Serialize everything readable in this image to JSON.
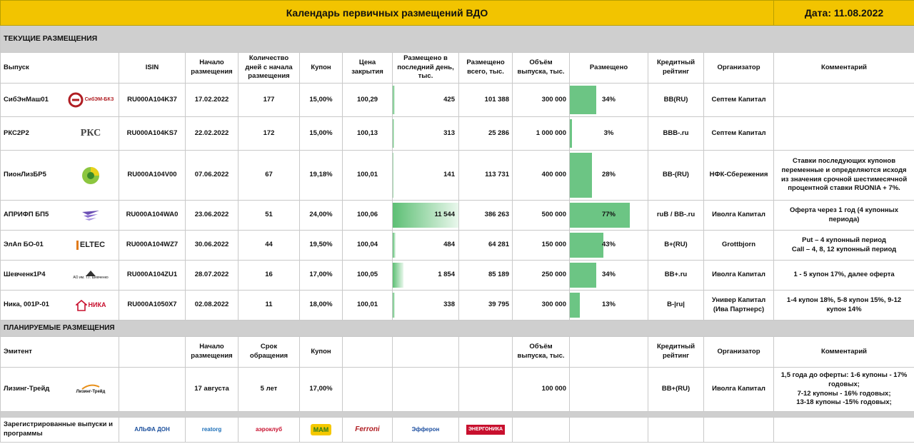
{
  "header": {
    "title": "Календарь первичных размещений ВДО",
    "date": "Дата: 11.08.2022"
  },
  "current": {
    "section_title": "ТЕКУЩИЕ РАЗМЕЩЕНИЯ",
    "columns": [
      "Выпуск",
      "ISIN",
      "Начало размещения",
      "Количество дней с начала размещения",
      "Купон",
      "Цена закрытия",
      "Размещено в последний день, тыс.",
      "Размещено всего, тыс.",
      "Объём выпуска, тыс.",
      "Размещено",
      "Кредитный рейтинг",
      "Организатор",
      "Комментарий"
    ],
    "rows": [
      {
        "issue": "СибЭнМаш01",
        "logo": "СибЭМ-БКЗ",
        "isin": "RU000A104K37",
        "start": "17.02.2022",
        "days": "177",
        "coupon": "15,00%",
        "price": "100,29",
        "last_day": "425",
        "last_day_frac": 0.037,
        "total": "101 388",
        "volume": "300 000",
        "placed_pct": "34%",
        "placed_frac": 0.34,
        "rating": "BB(RU)",
        "organizer": "Септем Капитал",
        "comment": ""
      },
      {
        "issue": "РКС2Р2",
        "logo": "РКС",
        "isin": "RU000A104KS7",
        "start": "22.02.2022",
        "days": "172",
        "coupon": "15,00%",
        "price": "100,13",
        "last_day": "313",
        "last_day_frac": 0.027,
        "total": "25 286",
        "volume": "1 000 000",
        "placed_pct": "3%",
        "placed_frac": 0.03,
        "rating": "BBB-.ru",
        "organizer": "Септем Капитал",
        "comment": ""
      },
      {
        "issue": "ПионЛизБР5",
        "logo": "",
        "isin": "RU000A104V00",
        "start": "07.06.2022",
        "days": "67",
        "coupon": "19,18%",
        "price": "100,01",
        "last_day": "141",
        "last_day_frac": 0.012,
        "total": "113 731",
        "volume": "400 000",
        "placed_pct": "28%",
        "placed_frac": 0.28,
        "rating": "BB-(RU)",
        "organizer": "НФК-Сбережения",
        "comment": "Ставки последующих купонов переменные и определяются исходя из значения срочной шестимесячной процентной ставки RUONIA + 7%."
      },
      {
        "issue": "АПРИФП БП5",
        "logo": "",
        "isin": "RU000A104WA0",
        "start": "23.06.2022",
        "days": "51",
        "coupon": "24,00%",
        "price": "100,06",
        "last_day": "11 544",
        "last_day_frac": 1.0,
        "total": "386 263",
        "volume": "500 000",
        "placed_pct": "77%",
        "placed_frac": 0.77,
        "rating": "ruB / BB-.ru",
        "organizer": "Иволга Капитал",
        "comment": "Оферта через 1 год (4 купонных периода)"
      },
      {
        "issue": "ЭлАп БО-01",
        "logo": "ELTEC",
        "isin": "RU000A104WZ7",
        "start": "30.06.2022",
        "days": "44",
        "coupon": "19,50%",
        "price": "100,04",
        "last_day": "484",
        "last_day_frac": 0.042,
        "total": "64 281",
        "volume": "150 000",
        "placed_pct": "43%",
        "placed_frac": 0.43,
        "rating": "B+(RU)",
        "organizer": "Grottbjorn",
        "comment": "Put – 4 купонный период\nCall – 4, 8, 12 купонный период"
      },
      {
        "issue": "Шевченк1Р4",
        "logo": "АО им. Т.Г. Шевченко",
        "isin": "RU000A104ZU1",
        "start": "28.07.2022",
        "days": "16",
        "coupon": "17,00%",
        "price": "100,05",
        "last_day": "1 854",
        "last_day_frac": 0.16,
        "total": "85 189",
        "volume": "250 000",
        "placed_pct": "34%",
        "placed_frac": 0.34,
        "rating": "BB+.ru",
        "organizer": "Иволга Капитал",
        "comment": "1 - 5 купон 17%, далее оферта"
      },
      {
        "issue": "Ника, 001Р-01",
        "logo": "НИКА",
        "isin": "RU000A1050X7",
        "start": "02.08.2022",
        "days": "11",
        "coupon": "18,00%",
        "price": "100,01",
        "last_day": "338",
        "last_day_frac": 0.029,
        "total": "39 795",
        "volume": "300 000",
        "placed_pct": "13%",
        "placed_frac": 0.13,
        "rating": "B-|ru|",
        "organizer": "Универ Капитал (Ива Партнерс)",
        "comment": "1-4 купон 18%, 5-8 купон 15%, 9-12 купон 14%"
      }
    ]
  },
  "planned": {
    "section_title": "ПЛАНИРУЕМЫЕ РАЗМЕЩЕНИЯ",
    "columns": {
      "issuer": "Эмитент",
      "start": "Начало размещения",
      "term": "Срок обращения",
      "coupon": "Купон",
      "volume": "Объём выпуска, тыс.",
      "rating": "Кредитный рейтинг",
      "organizer": "Организатор",
      "comment": "Комментарий"
    },
    "rows": [
      {
        "issuer": "Лизинг-Трейд",
        "logo": "Лизинг-Трейд",
        "start": "17 августа",
        "term": "5 лет",
        "coupon": "17,00%",
        "volume": "100 000",
        "rating": "BB+(RU)",
        "organizer": "Иволга Капитал",
        "comment": "1,5 года до оферты: 1-6 купоны - 17% годовых;\n7-12 купоны - 16% годовых;\n13-18 купоны -15% годовых;"
      }
    ]
  },
  "registered": {
    "label": "Зарегистрированные выпуски и программы",
    "logos": [
      "АЛЬФА ДОН",
      "reatorg",
      "аэроклуб",
      "МАМ",
      "Ferroni",
      "Эфферон",
      "ЭНЕРГОНИКА"
    ]
  },
  "colors": {
    "header_bg": "#f2c400",
    "section_bg": "#cfcfcf",
    "bar": "#6cc584"
  },
  "icons": [
    "sibem-logo",
    "rks-logo",
    "pion-leasing-logo",
    "aprifp-logo",
    "eltec-logo",
    "shevchenko-logo",
    "nika-logo",
    "leasing-trade-logo"
  ]
}
